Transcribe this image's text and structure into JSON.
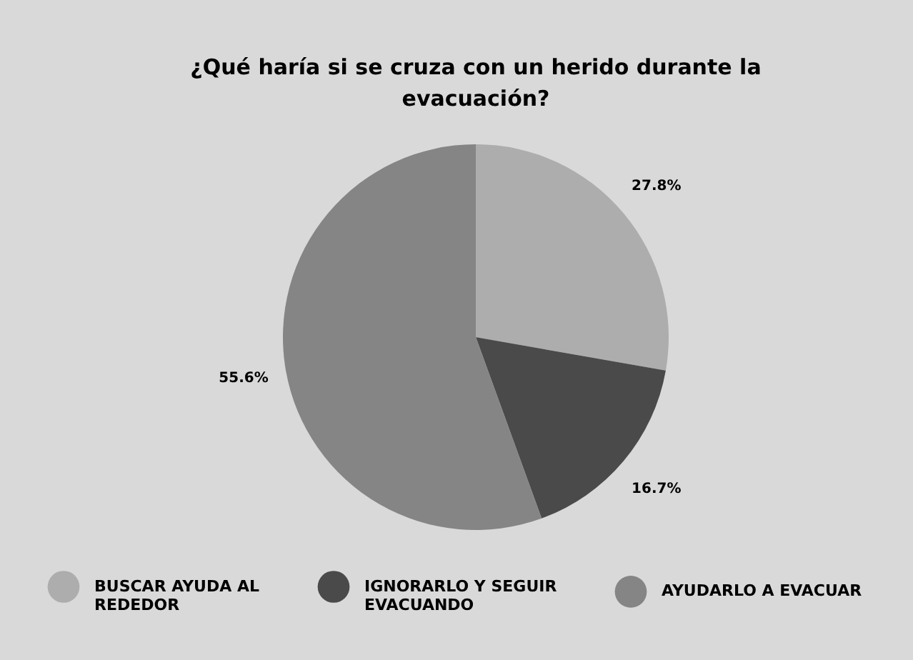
{
  "chart_data": {
    "type": "pie",
    "title": "¿Qué haría si se cruza con un herido durante la evacuación?",
    "categories": [
      "BUSCAR AYUDA AL REDEDOR",
      "IGNORARLO Y SEGUIR EVACUANDO",
      "AYUDARLO A EVACUAR"
    ],
    "values": [
      27.8,
      16.7,
      55.6
    ],
    "colors": [
      "#adadad",
      "#4a4a4a",
      "#858585"
    ],
    "value_labels": [
      "27.8%",
      "16.7%",
      "55.6%"
    ],
    "legend": "bottom"
  }
}
